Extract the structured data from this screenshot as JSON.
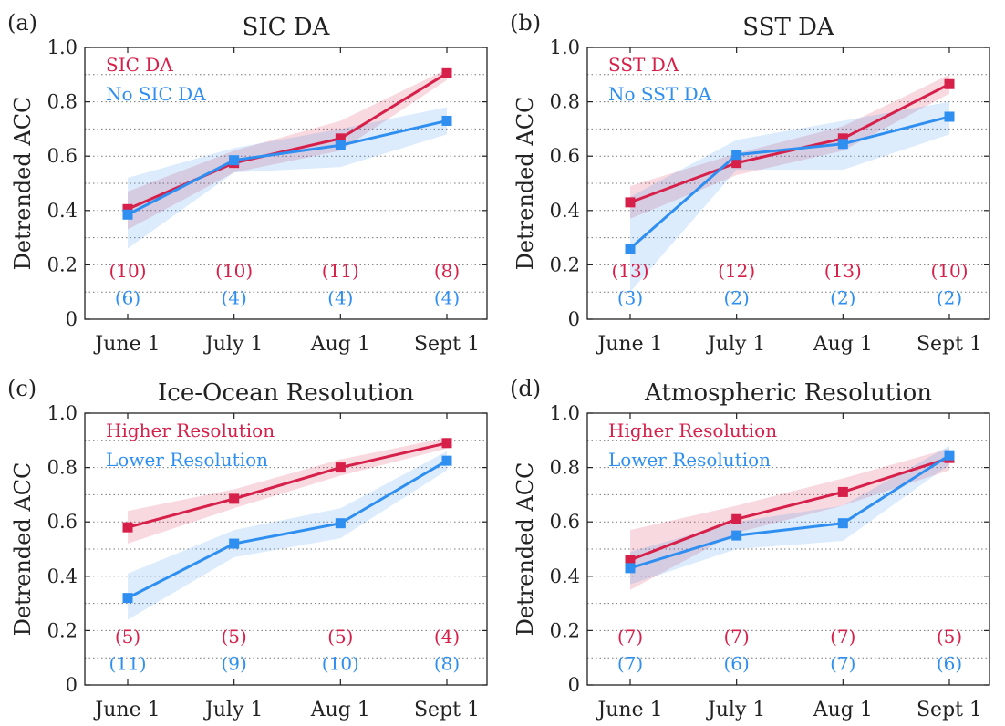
{
  "figure": {
    "colors": {
      "red": "#d6204a",
      "blue": "#2f8ff0"
    }
  },
  "chart_data": [
    {
      "panel_label": "(a)",
      "type": "line",
      "title": "SIC DA",
      "xlabel": "",
      "ylabel": "Detrended ACC",
      "categories": [
        "June 1",
        "July 1",
        "Aug 1",
        "Sept 1"
      ],
      "ylim": [
        0,
        1.0
      ],
      "yticks": [
        "0",
        "0.2",
        "0.4",
        "0.6",
        "0.8",
        "1.0"
      ],
      "grid": "dotted horizontal",
      "legend_placement": "top-left",
      "series": [
        {
          "name": "SIC DA",
          "color": "red",
          "values": [
            0.405,
            0.575,
            0.665,
            0.905
          ],
          "lower": [
            0.33,
            0.54,
            0.62,
            0.88
          ],
          "upper": [
            0.47,
            0.62,
            0.73,
            0.92
          ],
          "counts": [
            "(10)",
            "(10)",
            "(11)",
            "(8)"
          ]
        },
        {
          "name": "No SIC DA",
          "color": "blue",
          "values": [
            0.385,
            0.585,
            0.64,
            0.73
          ],
          "lower": [
            0.26,
            0.54,
            0.56,
            0.68
          ],
          "upper": [
            0.52,
            0.63,
            0.7,
            0.78
          ],
          "counts": [
            "(6)",
            "(4)",
            "(4)",
            "(4)"
          ]
        }
      ]
    },
    {
      "panel_label": "(b)",
      "type": "line",
      "title": "SST DA",
      "xlabel": "",
      "ylabel": "Detrended ACC",
      "categories": [
        "June 1",
        "July 1",
        "Aug 1",
        "Sept 1"
      ],
      "ylim": [
        0,
        1.0
      ],
      "yticks": [
        "0",
        "0.2",
        "0.4",
        "0.6",
        "0.8",
        "1.0"
      ],
      "grid": "dotted horizontal",
      "legend_placement": "top-left",
      "series": [
        {
          "name": "SST DA",
          "color": "red",
          "values": [
            0.43,
            0.575,
            0.665,
            0.865
          ],
          "lower": [
            0.37,
            0.53,
            0.62,
            0.83
          ],
          "upper": [
            0.49,
            0.61,
            0.71,
            0.9
          ],
          "counts": [
            "(13)",
            "(12)",
            "(13)",
            "(10)"
          ]
        },
        {
          "name": "No SST DA",
          "color": "blue",
          "values": [
            0.26,
            0.605,
            0.645,
            0.745
          ],
          "lower": [
            0.1,
            0.55,
            0.55,
            0.68
          ],
          "upper": [
            0.45,
            0.66,
            0.73,
            0.8
          ],
          "counts": [
            "(3)",
            "(2)",
            "(2)",
            "(2)"
          ]
        }
      ]
    },
    {
      "panel_label": "(c)",
      "type": "line",
      "title": "Ice-Ocean Resolution",
      "xlabel": "",
      "ylabel": "Detrended ACC",
      "categories": [
        "June 1",
        "July 1",
        "Aug 1",
        "Sept 1"
      ],
      "ylim": [
        0,
        1.0
      ],
      "yticks": [
        "0",
        "0.2",
        "0.4",
        "0.6",
        "0.8",
        "1.0"
      ],
      "grid": "dotted horizontal",
      "legend_placement": "top-left",
      "series": [
        {
          "name": "Higher Resolution",
          "color": "red",
          "values": [
            0.58,
            0.685,
            0.8,
            0.89
          ],
          "lower": [
            0.52,
            0.65,
            0.77,
            0.87
          ],
          "upper": [
            0.64,
            0.72,
            0.83,
            0.91
          ],
          "counts": [
            "(5)",
            "(5)",
            "(5)",
            "(4)"
          ]
        },
        {
          "name": "Lower Resolution",
          "color": "blue",
          "values": [
            0.32,
            0.52,
            0.595,
            0.825
          ],
          "lower": [
            0.24,
            0.47,
            0.54,
            0.79
          ],
          "upper": [
            0.41,
            0.57,
            0.65,
            0.86
          ],
          "counts": [
            "(11)",
            "(9)",
            "(10)",
            "(8)"
          ]
        }
      ]
    },
    {
      "panel_label": "(d)",
      "type": "line",
      "title": "Atmospheric Resolution",
      "xlabel": "",
      "ylabel": "Detrended ACC",
      "categories": [
        "June 1",
        "July 1",
        "Aug 1",
        "Sept 1"
      ],
      "ylim": [
        0,
        1.0
      ],
      "yticks": [
        "0",
        "0.2",
        "0.4",
        "0.6",
        "0.8",
        "1.0"
      ],
      "grid": "dotted horizontal",
      "legend_placement": "top-left",
      "series": [
        {
          "name": "Higher Resolution",
          "color": "red",
          "values": [
            0.46,
            0.61,
            0.71,
            0.835
          ],
          "lower": [
            0.35,
            0.56,
            0.66,
            0.79
          ],
          "upper": [
            0.57,
            0.66,
            0.76,
            0.87
          ],
          "counts": [
            "(7)",
            "(7)",
            "(7)",
            "(5)"
          ]
        },
        {
          "name": "Lower Resolution",
          "color": "blue",
          "values": [
            0.43,
            0.55,
            0.595,
            0.845
          ],
          "lower": [
            0.37,
            0.5,
            0.53,
            0.81
          ],
          "upper": [
            0.49,
            0.6,
            0.66,
            0.88
          ],
          "counts": [
            "(7)",
            "(6)",
            "(7)",
            "(6)"
          ]
        }
      ]
    }
  ]
}
